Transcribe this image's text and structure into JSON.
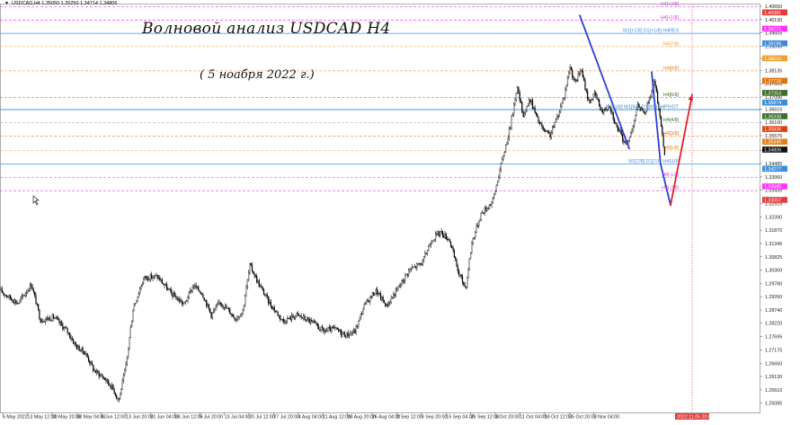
{
  "header": {
    "symbol_line": "USDCAD,H4  1.35050 1.35250 1.34714 1.34806"
  },
  "annotation": {
    "title": "Волновой анализ USDCAD H4",
    "subtitle": "( 5 ноабря 2022 г.)"
  },
  "chart_data": {
    "type": "line",
    "chart_kind": "candlestick price chart with wave-analysis overlay",
    "ylim": [
      1.24969,
      1.4065
    ],
    "y_ticks": [
      "1.40650",
      "1.40130",
      "1.39605",
      "1.39090",
      "1.38605",
      "1.38135",
      "1.37615",
      "1.37090",
      "1.36615",
      "1.36100",
      "1.35575",
      "1.35005",
      "1.34485",
      "1.33960",
      "1.33435",
      "1.32915",
      "1.32390",
      "1.31870",
      "1.31345",
      "1.30825",
      "1.30300",
      "1.29780",
      "1.29260",
      "1.28740",
      "1.28220",
      "1.27695",
      "1.27175",
      "1.26650",
      "1.26130",
      "1.25610",
      "1.25085"
    ],
    "x_ticks": [
      "6 May 2022",
      "13 May 12:00",
      "20 May 20:00",
      "30 May 04:00",
      "6 Jun 12:00",
      "13 Jun 20:00",
      "21 Jun 04:00",
      "28 Jun 12:00",
      "5 Jul 20:00",
      "13 Jul 04:00",
      "20 Jul 12:00",
      "27 Jul 20:00",
      "4 Aug 04:00",
      "11 Aug 12:00",
      "18 Aug 20:00",
      "26 Aug 04:00",
      "2 Sep 12:00",
      "9 Sep 20:00",
      "19 Sep 04:00",
      "26 Sep 12:00",
      "3 Oct 20:00",
      "11 Oct 04:00",
      "18 Oct 12:00",
      "25 Oct 20:00",
      "2 Nov 04:00"
    ],
    "current_time_label": "2022.11.05 20:00",
    "price_path_keypoints": [
      [
        0,
        1.295
      ],
      [
        20,
        1.29
      ],
      [
        35,
        1.2975
      ],
      [
        45,
        1.2835
      ],
      [
        60,
        1.2845
      ],
      [
        75,
        1.279
      ],
      [
        85,
        1.273
      ],
      [
        95,
        1.2705
      ],
      [
        105,
        1.2635
      ],
      [
        115,
        1.261
      ],
      [
        125,
        1.257
      ],
      [
        132,
        1.252
      ],
      [
        140,
        1.265
      ],
      [
        148,
        1.288
      ],
      [
        160,
        1.3
      ],
      [
        175,
        1.3005
      ],
      [
        190,
        1.294
      ],
      [
        205,
        1.2895
      ],
      [
        215,
        1.297
      ],
      [
        225,
        1.294
      ],
      [
        235,
        1.2855
      ],
      [
        245,
        1.2905
      ],
      [
        255,
        1.287
      ],
      [
        262,
        1.284
      ],
      [
        270,
        1.287
      ],
      [
        278,
        1.305
      ],
      [
        288,
        1.2975
      ],
      [
        300,
        1.29
      ],
      [
        315,
        1.283
      ],
      [
        330,
        1.2855
      ],
      [
        345,
        1.283
      ],
      [
        360,
        1.279
      ],
      [
        372,
        1.28
      ],
      [
        385,
        1.2775
      ],
      [
        395,
        1.279
      ],
      [
        405,
        1.289
      ],
      [
        418,
        1.295
      ],
      [
        430,
        1.289
      ],
      [
        443,
        1.296
      ],
      [
        455,
        1.303
      ],
      [
        470,
        1.306
      ],
      [
        480,
        1.315
      ],
      [
        490,
        1.318
      ],
      [
        500,
        1.315
      ],
      [
        510,
        1.302
      ],
      [
        518,
        1.296
      ],
      [
        525,
        1.314
      ],
      [
        535,
        1.325
      ],
      [
        548,
        1.33
      ],
      [
        558,
        1.345
      ],
      [
        568,
        1.36
      ],
      [
        575,
        1.375
      ],
      [
        582,
        1.364
      ],
      [
        590,
        1.37
      ],
      [
        598,
        1.362
      ],
      [
        606,
        1.357
      ],
      [
        612,
        1.356
      ],
      [
        620,
        1.363
      ],
      [
        628,
        1.372
      ],
      [
        634,
        1.383
      ],
      [
        640,
        1.376
      ],
      [
        646,
        1.382
      ],
      [
        655,
        1.369
      ],
      [
        662,
        1.372
      ],
      [
        670,
        1.365
      ],
      [
        678,
        1.368
      ],
      [
        685,
        1.36
      ],
      [
        692,
        1.355
      ],
      [
        698,
        1.352
      ],
      [
        704,
        1.36
      ],
      [
        710,
        1.368
      ],
      [
        716,
        1.364
      ],
      [
        722,
        1.37
      ],
      [
        728,
        1.377
      ],
      [
        734,
        1.364
      ],
      [
        738,
        1.352
      ],
      [
        740,
        1.348
      ]
    ],
    "wave_lines": [
      {
        "color": "#2b3fd8",
        "points": [
          [
            1.4029,
            645
          ],
          [
            1.3507,
            700
          ]
        ]
      },
      {
        "color": "#2b3fd8",
        "points": [
          [
            1.3807,
            725
          ],
          [
            1.3445,
            735
          ],
          [
            1.3285,
            746
          ]
        ]
      },
      {
        "color": "#e0202a",
        "points": [
          [
            1.3285,
            746
          ],
          [
            1.3718,
            770
          ]
        ]
      }
    ],
    "levels": [
      {
        "label": "H4[+2/8]",
        "price": 1.4065,
        "color": "#dd66dd",
        "style": "dash",
        "label_color": "#cc44cc",
        "tag_color": "#e23b3b"
      },
      {
        "label": "H4[+1/8]",
        "price": 1.4013,
        "color": "#ff33ff",
        "style": "dash",
        "label_color": "#cc44cc",
        "tag_color": "#ff33ff"
      },
      {
        "label": "W1[+1/8] D1[+1/8] H4RES",
        "price": 1.39605,
        "color": "#4da6ff",
        "style": "solid",
        "label_color": "#4a8ed8",
        "tag_color": "#3b8ddb"
      },
      {
        "label": "H4[7/8]",
        "price": 1.3909,
        "color": "#ffb070",
        "style": "dash",
        "label_color": "#f0a030",
        "tag_color": "#f0a030"
      },
      {
        "label": "H4[8/8]",
        "price": 1.38135,
        "color": "#f4a460",
        "style": "dash",
        "label_color": "#e08020",
        "tag_color": "#e07010"
      },
      {
        "label": "H4[6/8]",
        "price": 1.3709,
        "color": "#999999",
        "style": "dash",
        "label_color": "#3c6e2a",
        "tag_color": "#3c6e2a"
      },
      {
        "label": "MN[1/8] W1[8/8] D1[8/8] H4PIVOT",
        "price": 1.36615,
        "color": "#3f9ad8",
        "style": "solid",
        "label_color": "#3f7ec8",
        "tag_color": "#3b8ddb"
      },
      {
        "label": "H4[4/8]",
        "price": 1.361,
        "color": "#bbbbbb",
        "style": "dash",
        "label_color": "#3c6e2a",
        "tag_color": "#3c6e2a"
      },
      {
        "label": "H4[3/8]",
        "price": 1.35575,
        "color": "#ff8c40",
        "style": "dash",
        "label_color": "#e07010",
        "tag_color": "#e04010"
      },
      {
        "label": "H4[1/8]",
        "price": 1.35005,
        "color": "#ffb070",
        "style": "dash",
        "label_color": "#e08020",
        "tag_color": "#e08020"
      },
      {
        "label": "W1[7/8] D1[7/8] H4SUP",
        "price": 1.34485,
        "color": "#4da6ff",
        "style": "solid",
        "label_color": "#4a8ed8",
        "tag_color": "#3b8ddb"
      },
      {
        "label": "H4[-1/8]",
        "price": 1.3396,
        "color": "#ff66ff",
        "style": "dash",
        "label_color": "#cc44cc",
        "tag_color": "#ff33ff"
      },
      {
        "label": "H4[-2/8]",
        "price": 1.33435,
        "color": "#dd66dd",
        "style": "dash",
        "label_color": "#cc44cc",
        "tag_color": "#e23b3b"
      }
    ],
    "price_tags": [
      {
        "value": "1.40381",
        "price": 1.4041,
        "color": "#e23b3b"
      },
      {
        "value": "1.39771",
        "price": 1.3977,
        "color": "#ff33ff"
      },
      {
        "value": "1.39196",
        "price": 1.39196,
        "color": "#3b8ddb"
      },
      {
        "value": "1.38610",
        "price": 1.3861,
        "color": "#f0a030"
      },
      {
        "value": "1.37728",
        "price": 1.37728,
        "color": "#e07010"
      },
      {
        "value": "1.37253",
        "price": 1.37253,
        "color": "#3c6e2a"
      },
      {
        "value": "1.36874",
        "price": 1.36874,
        "color": "#3b8ddb"
      },
      {
        "value": "1.36338",
        "price": 1.36338,
        "color": "#3c6e2a"
      },
      {
        "value": "1.35836",
        "price": 1.35836,
        "color": "#e04010"
      },
      {
        "value": "1.35340",
        "price": 1.3534,
        "color": "#e08020"
      },
      {
        "value": "1.34806",
        "price": 1.3503,
        "color": "#111111"
      },
      {
        "value": "1.34277",
        "price": 1.34277,
        "color": "#3b8ddb"
      },
      {
        "value": "1.33585",
        "price": 1.33585,
        "color": "#ff33ff"
      },
      {
        "value": "1.33057",
        "price": 1.33057,
        "color": "#e23b3b"
      }
    ]
  }
}
